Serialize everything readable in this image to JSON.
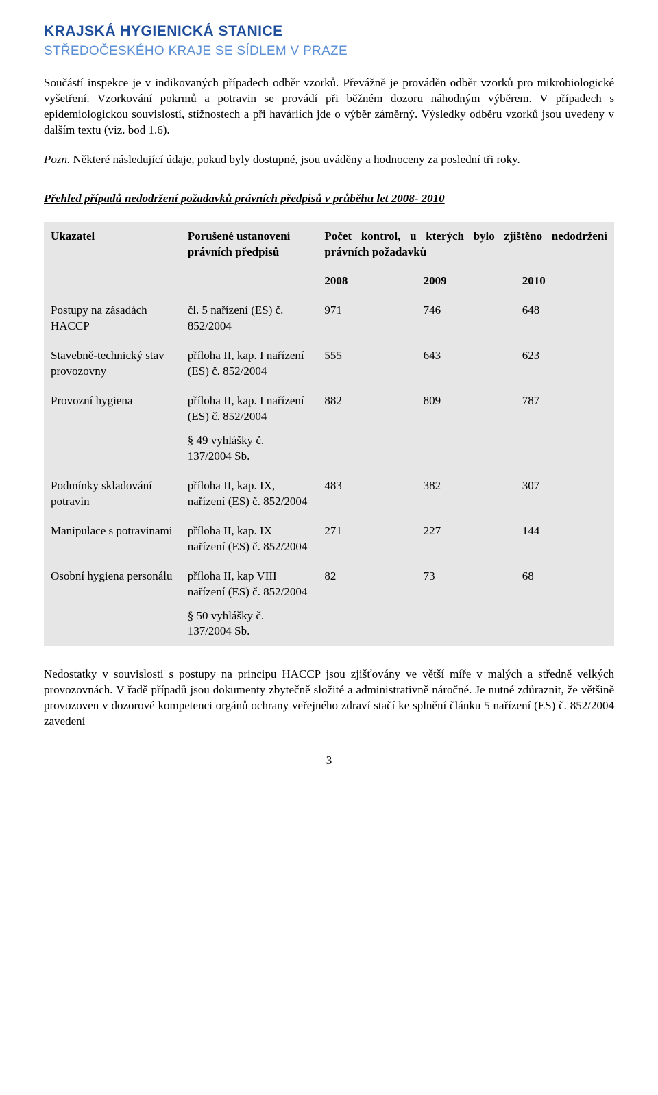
{
  "header": {
    "line1": "KRAJSKÁ HYGIENICKÁ STANICE",
    "line2": "STŘEDOČESKÉHO KRAJE SE SÍDLEM V PRAZE"
  },
  "paragraphs": {
    "p1": "Součástí inspekce je v indikovaných případech odběr vzorků. Převážně je prováděn odběr vzorků pro mikrobiologické vyšetření. Vzorkování pokrmů a potravin se provádí při běžném dozoru náhodným výběrem. V případech s epidemiologickou souvislostí, stížnostech a při haváriích jde o výběr záměrný. Výsledky odběru vzorků jsou uvedeny  v dalším textu (viz. bod 1.6).",
    "p2_prefix": "Pozn.",
    "p2_rest": " Některé následující údaje, pokud byly dostupné, jsou  uváděny a hodnoceny za poslední tři roky.",
    "section_title": "Přehled případů nedodržení požadavků právních předpisů v průběhu let 2008- 2010",
    "footer": "Nedostatky  v souvislosti  s postupy  na  principu  HACCP  jsou  zjišťovány  ve  větší  míře v malých a středně velkých provozovnách. V řadě případů jsou dokumenty zbytečně složité a administrativně náročné. Je nutné zdůraznit, že většině provozoven v dozorové kompetenci orgánů ochrany veřejného zdraví stačí ke splnění článku 5 nařízení (ES) č. 852/2004 zavedení"
  },
  "table": {
    "head": {
      "ukazatel": "Ukazatel",
      "porusene": "Porušené ustanovení právních předpisů",
      "pocet": "Počet kontrol, u kterých bylo zjištěno nedodržení právních požadavků",
      "y2008": "2008",
      "y2009": "2009",
      "y2010": "2010"
    },
    "rows": [
      {
        "ukazatel": "Postupy na zásadách HACCP",
        "predpis": "čl. 5 nařízení (ES) č. 852/2004",
        "predpis_extra": "",
        "v2008": "971",
        "v2009": "746",
        "v2010": "648"
      },
      {
        "ukazatel": "Stavebně-technický stav provozovny",
        "predpis": "příloha II, kap. I nařízení (ES) č. 852/2004",
        "predpis_extra": "",
        "v2008": "555",
        "v2009": "643",
        "v2010": "623"
      },
      {
        "ukazatel": "Provozní hygiena",
        "predpis": "příloha II, kap. I nařízení (ES) č. 852/2004",
        "predpis_extra": "§ 49 vyhlášky č. 137/2004 Sb.",
        "v2008": "882",
        "v2009": "809",
        "v2010": "787"
      },
      {
        "ukazatel": "Podmínky skladování potravin",
        "predpis": "příloha II, kap. IX, nařízení (ES) č. 852/2004",
        "predpis_extra": "",
        "v2008": "483",
        "v2009": "382",
        "v2010": "307"
      },
      {
        "ukazatel": "Manipulace s potravinami",
        "predpis": "příloha II, kap. IX nařízení (ES) č. 852/2004",
        "predpis_extra": "",
        "v2008": "271",
        "v2009": "227",
        "v2010": "144"
      },
      {
        "ukazatel": "Osobní hygiena personálu",
        "predpis": "příloha II, kap VIII nařízení (ES) č. 852/2004",
        "predpis_extra": "§ 50 vyhlášky č. 137/2004 Sb.",
        "v2008": "82",
        "v2009": "73",
        "v2010": "68"
      }
    ]
  },
  "page_number": "3",
  "colors": {
    "header_primary": "#1f4e9c",
    "header_secondary": "#5b8fd6",
    "table_bg": "#e6e6e6",
    "text": "#000000",
    "page_bg": "#ffffff"
  },
  "typography": {
    "body_font": "Times New Roman",
    "header_font": "Arial",
    "body_size_pt": 13,
    "header1_size_pt": 16,
    "header2_size_pt": 14
  }
}
